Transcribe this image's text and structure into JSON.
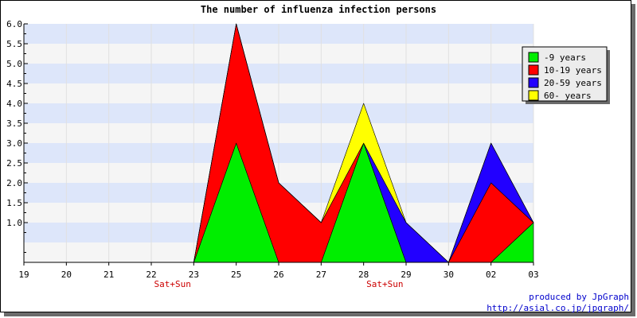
{
  "chart_data": {
    "type": "area",
    "title": "The number of influenza infection persons",
    "xlabel": "",
    "ylabel": "",
    "categories": [
      "19",
      "20",
      "21",
      "22",
      "23",
      "25",
      "26",
      "27",
      "28",
      "29",
      "30",
      "02",
      "03"
    ],
    "ylim": [
      0,
      6.0
    ],
    "y_ticks": [
      "1.0",
      "1.5",
      "2.0",
      "2.5",
      "3.0",
      "3.5",
      "4.0",
      "4.5",
      "5.0",
      "5.5",
      "6.0"
    ],
    "stacked": true,
    "grid": "horizontal alternating bands",
    "legend_position": "top-right",
    "weekend_markers": [
      {
        "index": 3,
        "label": "Sat+Sun"
      },
      {
        "index": 8,
        "label": "Sat+Sun"
      }
    ],
    "series": [
      {
        "name": "-9 years",
        "color": "#00ee00",
        "values": [
          0,
          0,
          0,
          0,
          0,
          3,
          0,
          0,
          3,
          0,
          0,
          0,
          1
        ]
      },
      {
        "name": "10-19 years",
        "color": "#ff0000",
        "values": [
          0,
          0,
          0,
          0,
          0,
          3,
          2,
          1,
          0,
          0,
          0,
          2,
          0
        ]
      },
      {
        "name": "20-59 years",
        "color": "#2200ff",
        "values": [
          0,
          0,
          0,
          0,
          0,
          0,
          0,
          0,
          0,
          1,
          0,
          1,
          0
        ]
      },
      {
        "name": "60- years",
        "color": "#ffff00",
        "values": [
          0,
          0,
          0,
          0,
          0,
          0,
          0,
          0,
          1,
          0,
          0,
          0,
          0
        ]
      }
    ]
  },
  "credits": {
    "line1": "produced by JpGraph",
    "line2": "http://asial.co.jp/jpgraph/"
  }
}
